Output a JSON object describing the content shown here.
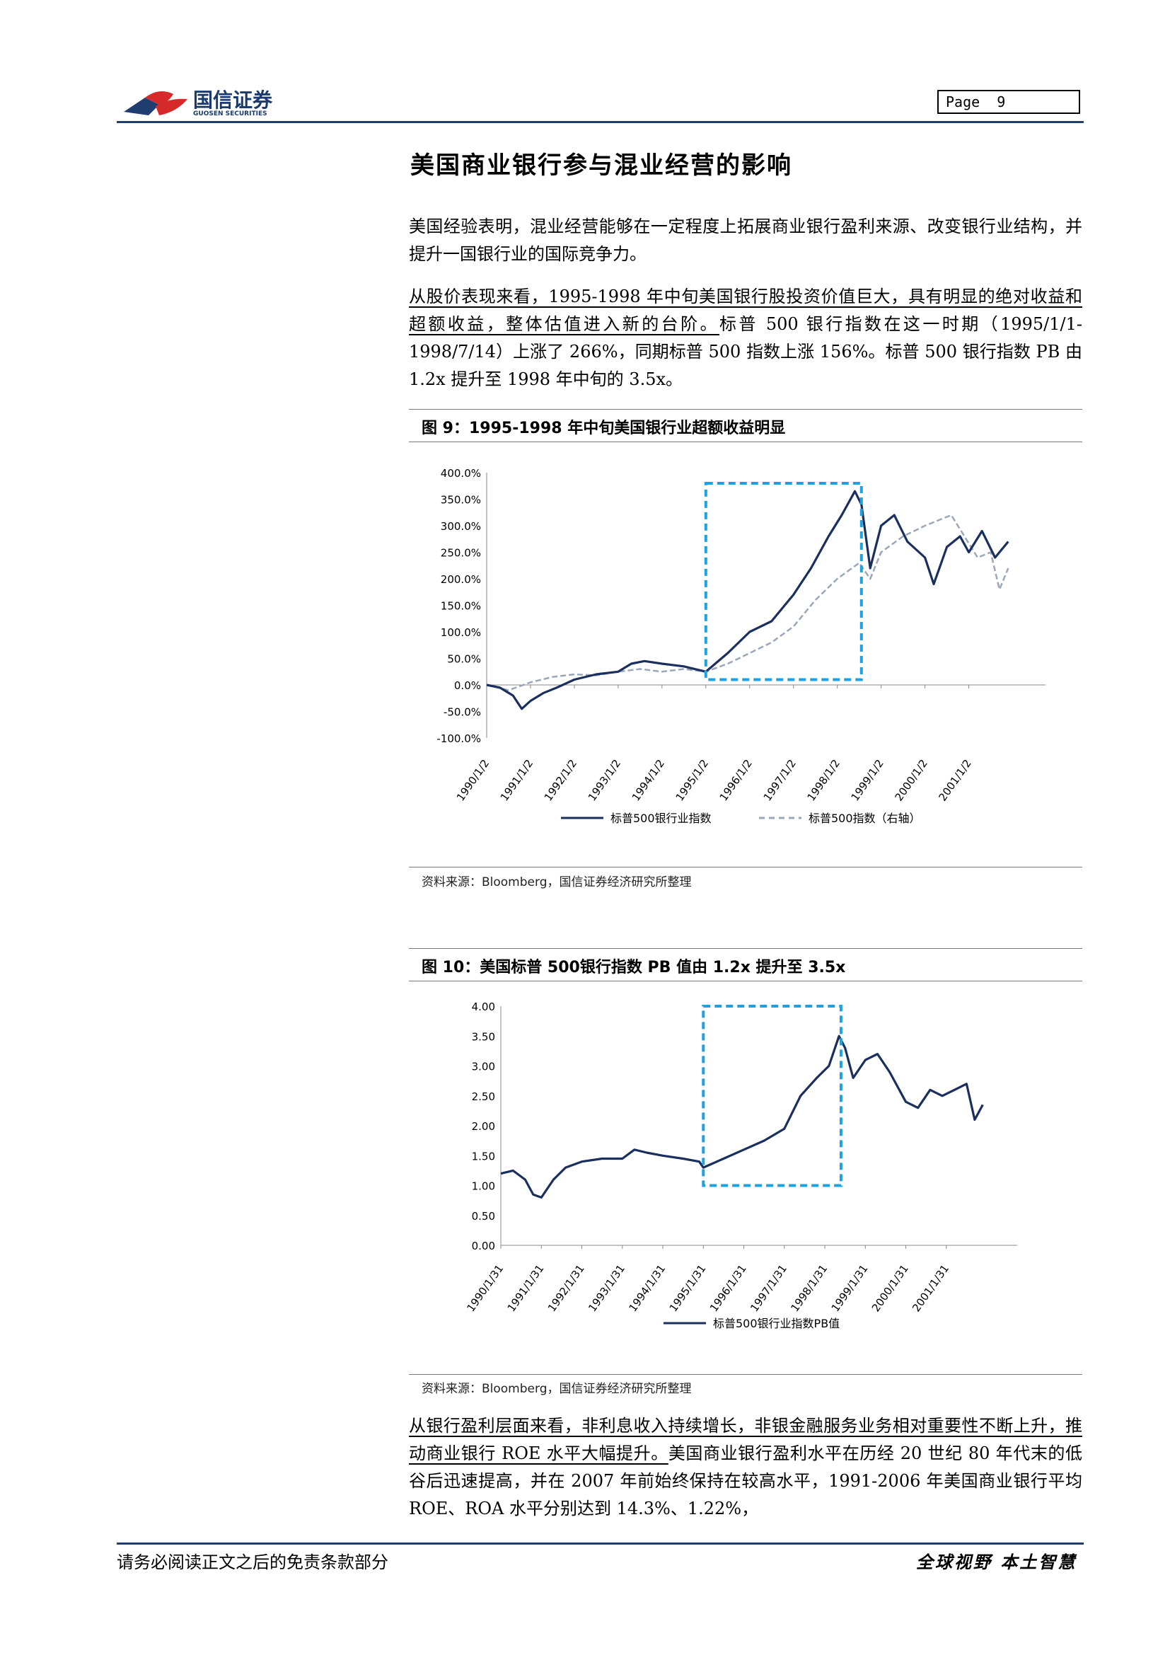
{
  "header": {
    "logo_cn": "国信证券",
    "logo_en": "GUOSEN SECURITIES",
    "page_label": "Page",
    "page_number": "9"
  },
  "section": {
    "title": "美国商业银行参与混业经营的影响",
    "para1": "美国经验表明，混业经营能够在一定程度上拓展商业银行盈利来源、改变银行业结构，并提升一国银行业的国际竞争力。",
    "para2_underlined": "从股价表现来看，1995-1998 年中旬美国银行股投资价值巨大，具有明显的绝对收益和超额收益，整体估值进入新的台阶。",
    "para2_rest": "标普 500 银行指数在这一时期（1995/1/1-1998/7/14）上涨了 266%，同期标普 500 指数上涨 156%。标普 500 银行指数 PB 由 1.2x 提升至 1998 年中旬的 3.5x。",
    "para3_underlined": "从银行盈利层面来看，非利息收入持续增长，非银金融服务业务相对重要性不断上升，推动商业银行 ROE 水平大幅提升。",
    "para3_rest": "美国商业银行盈利水平在历经 20 世纪 80 年代末的低谷后迅速提高，并在 2007 年前始终保持在较高水平，1991-2006 年美国商业银行平均 ROE、ROA 水平分别达到 14.3%、1.22%，"
  },
  "figure9": {
    "title": "图 9：1995-1998 年中旬美国银行业超额收益明显",
    "source": "资料来源：Bloomberg，国信证券经济研究所整理"
  },
  "figure10": {
    "title": "图 10：美国标普 500银行指数 PB 值由 1.2x 提升至 3.5x",
    "source": "资料来源：Bloomberg，国信证券经济研究所整理"
  },
  "chart_data": [
    {
      "type": "line",
      "y_ticks": [
        "400.0%",
        "350.0%",
        "300.0%",
        "250.0%",
        "200.0%",
        "150.0%",
        "100.0%",
        "50.0%",
        "0.0%",
        "-50.0%",
        "-100.0%"
      ],
      "ylim": [
        -100,
        400
      ],
      "x_ticks": [
        "1990/1/2",
        "1991/1/2",
        "1992/1/2",
        "1993/1/2",
        "1994/1/2",
        "1995/1/2",
        "1996/1/2",
        "1997/1/2",
        "1998/1/2",
        "1999/1/2",
        "2000/1/2",
        "2001/1/2"
      ],
      "legend": [
        "标普500银行业指数",
        "标普500指数（右轴）"
      ],
      "legend_position": "bottom",
      "highlight_box": {
        "x_start": 1995.0,
        "x_end": 1998.55,
        "y_low": 10,
        "y_high": 380
      },
      "series": [
        {
          "name": "标普500银行业指数",
          "style": "solid",
          "color": "#1b2f5e",
          "x": [
            1990.0,
            1990.3,
            1990.6,
            1990.8,
            1991.0,
            1991.3,
            1991.6,
            1992.0,
            1992.5,
            1993.0,
            1993.3,
            1993.6,
            1994.0,
            1994.5,
            1995.0,
            1995.5,
            1996.0,
            1996.5,
            1997.0,
            1997.4,
            1997.8,
            1998.1,
            1998.4,
            1998.55,
            1998.75,
            1999.0,
            1999.3,
            1999.6,
            2000.0,
            2000.2,
            2000.5,
            2000.8,
            2001.0,
            2001.3,
            2001.6,
            2001.9
          ],
          "y": [
            0,
            -5,
            -20,
            -45,
            -30,
            -15,
            -5,
            10,
            20,
            25,
            40,
            45,
            40,
            35,
            25,
            60,
            100,
            120,
            170,
            220,
            280,
            320,
            365,
            340,
            220,
            300,
            320,
            270,
            240,
            190,
            260,
            280,
            250,
            290,
            240,
            270
          ]
        },
        {
          "name": "标普500指数（右轴）",
          "style": "dashed",
          "color": "#9aa7b8",
          "x": [
            1990.0,
            1990.5,
            1991.0,
            1991.5,
            1992.0,
            1992.5,
            1993.0,
            1993.5,
            1994.0,
            1994.5,
            1995.0,
            1995.5,
            1996.0,
            1996.5,
            1997.0,
            1997.5,
            1998.0,
            1998.5,
            1998.75,
            1999.0,
            1999.5,
            2000.0,
            2000.3,
            2000.6,
            2000.9,
            2001.2,
            2001.5,
            2001.7,
            2001.9
          ],
          "y": [
            0,
            -10,
            5,
            15,
            20,
            18,
            25,
            30,
            25,
            30,
            25,
            40,
            60,
            80,
            110,
            160,
            200,
            230,
            200,
            250,
            280,
            300,
            310,
            320,
            280,
            240,
            250,
            180,
            220
          ]
        }
      ]
    },
    {
      "type": "line",
      "y_ticks": [
        "4.00",
        "3.50",
        "3.00",
        "2.50",
        "2.00",
        "1.50",
        "1.00",
        "0.50",
        "0.00"
      ],
      "ylim": [
        0,
        4
      ],
      "x_ticks": [
        "1990/1/31",
        "1991/1/31",
        "1992/1/31",
        "1993/1/31",
        "1994/1/31",
        "1995/1/31",
        "1996/1/31",
        "1997/1/31",
        "1998/1/31",
        "1999/1/31",
        "2000/1/31",
        "2001/1/31"
      ],
      "legend": [
        "标普500银行业指数PB值"
      ],
      "legend_position": "bottom",
      "highlight_box": {
        "x_start": 1995.0,
        "x_end": 1998.4,
        "y_low": 1.0,
        "y_high": 4.0
      },
      "series": [
        {
          "name": "标普500银行业指数PB值",
          "style": "solid",
          "color": "#1b2f5e",
          "x": [
            1990.0,
            1990.3,
            1990.6,
            1990.8,
            1991.0,
            1991.3,
            1991.6,
            1992.0,
            1992.5,
            1993.0,
            1993.3,
            1993.6,
            1994.0,
            1994.5,
            1994.9,
            1995.0,
            1995.5,
            1996.0,
            1996.5,
            1997.0,
            1997.4,
            1997.8,
            1998.1,
            1998.35,
            1998.5,
            1998.7,
            1999.0,
            1999.3,
            1999.6,
            2000.0,
            2000.3,
            2000.6,
            2000.9,
            2001.2,
            2001.5,
            2001.7,
            2001.9
          ],
          "y": [
            1.2,
            1.25,
            1.1,
            0.85,
            0.8,
            1.1,
            1.3,
            1.4,
            1.45,
            1.45,
            1.6,
            1.55,
            1.5,
            1.45,
            1.4,
            1.3,
            1.45,
            1.6,
            1.75,
            1.95,
            2.5,
            2.8,
            3.0,
            3.5,
            3.3,
            2.8,
            3.1,
            3.2,
            2.9,
            2.4,
            2.3,
            2.6,
            2.5,
            2.6,
            2.7,
            2.1,
            2.35
          ]
        }
      ]
    }
  ]
}
